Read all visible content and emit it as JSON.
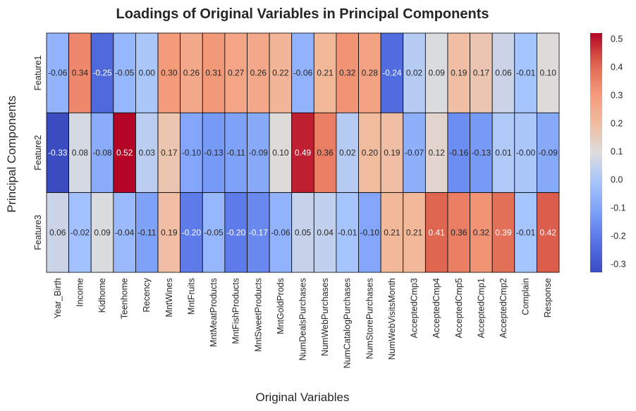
{
  "chart_data": {
    "type": "heatmap",
    "title": "Loadings of Original Variables in Principal Components",
    "xlabel": "Original Variables",
    "ylabel": "Principal Components",
    "x_categories": [
      "Year_Birth",
      "Income",
      "Kidhome",
      "Teenhome",
      "Recency",
      "MntWines",
      "MntFruits",
      "MntMeatProducts",
      "MntFishProducts",
      "MntSweetProducts",
      "MntGoldProds",
      "NumDealsPurchases",
      "NumWebPurchases",
      "NumCatalogPurchases",
      "NumStorePurchases",
      "NumWebVisitsMonth",
      "AcceptedCmp3",
      "AcceptedCmp4",
      "AcceptedCmp5",
      "AcceptedCmp1",
      "AcceptedCmp2",
      "Complain",
      "Response"
    ],
    "y_categories": [
      "Feature1",
      "Feature2",
      "Feature3"
    ],
    "values": [
      [
        -0.06,
        0.34,
        -0.25,
        -0.05,
        0.0,
        0.3,
        0.26,
        0.31,
        0.27,
        0.26,
        0.22,
        -0.06,
        0.21,
        0.32,
        0.28,
        -0.24,
        0.02,
        0.09,
        0.19,
        0.17,
        0.06,
        -0.01,
        0.1
      ],
      [
        -0.33,
        0.08,
        -0.08,
        0.52,
        0.03,
        0.17,
        -0.1,
        -0.13,
        -0.11,
        -0.09,
        0.1,
        0.49,
        0.36,
        0.02,
        0.2,
        0.19,
        -0.07,
        0.12,
        -0.16,
        -0.13,
        0.01,
        -0.0,
        -0.09
      ],
      [
        0.06,
        -0.02,
        0.09,
        -0.04,
        -0.11,
        0.19,
        -0.2,
        -0.05,
        -0.2,
        -0.17,
        -0.06,
        0.05,
        0.04,
        -0.01,
        -0.1,
        0.21,
        0.21,
        0.41,
        0.36,
        0.32,
        0.39,
        -0.01,
        0.42
      ]
    ],
    "labels": [
      [
        "-0.06",
        "0.34",
        "-0.25",
        "-0.05",
        "0.00",
        "0.30",
        "0.26",
        "0.31",
        "0.27",
        "0.26",
        "0.22",
        "-0.06",
        "0.21",
        "0.32",
        "0.28",
        "-0.24",
        "0.02",
        "0.09",
        "0.19",
        "0.17",
        "0.06",
        "-0.01",
        "0.10"
      ],
      [
        "-0.33",
        "0.08",
        "-0.08",
        "0.52",
        "0.03",
        "0.17",
        "-0.10",
        "-0.13",
        "-0.11",
        "-0.09",
        "0.10",
        "0.49",
        "0.36",
        "0.02",
        "0.20",
        "0.19",
        "-0.07",
        "0.12",
        "-0.16",
        "-0.13",
        "0.01",
        "-0.00",
        "-0.09"
      ],
      [
        "0.06",
        "-0.02",
        "0.09",
        "-0.04",
        "-0.11",
        "0.19",
        "-0.20",
        "-0.05",
        "-0.20",
        "-0.17",
        "-0.06",
        "0.05",
        "0.04",
        "-0.01",
        "-0.10",
        "0.21",
        "0.21",
        "0.41",
        "0.36",
        "0.32",
        "0.39",
        "-0.01",
        "0.42"
      ]
    ],
    "colormap": "coolwarm",
    "vmin": -0.33,
    "vmax": 0.52,
    "colorbar_ticks": [
      "0.5",
      "0.4",
      "0.3",
      "0.2",
      "0.1",
      "0.0",
      "-0.1",
      "-0.2",
      "-0.3"
    ],
    "colorbar_tick_values": [
      0.5,
      0.4,
      0.3,
      0.2,
      0.1,
      0.0,
      -0.1,
      -0.2,
      -0.3
    ],
    "grid": false,
    "cell_border_color": "#000000"
  }
}
